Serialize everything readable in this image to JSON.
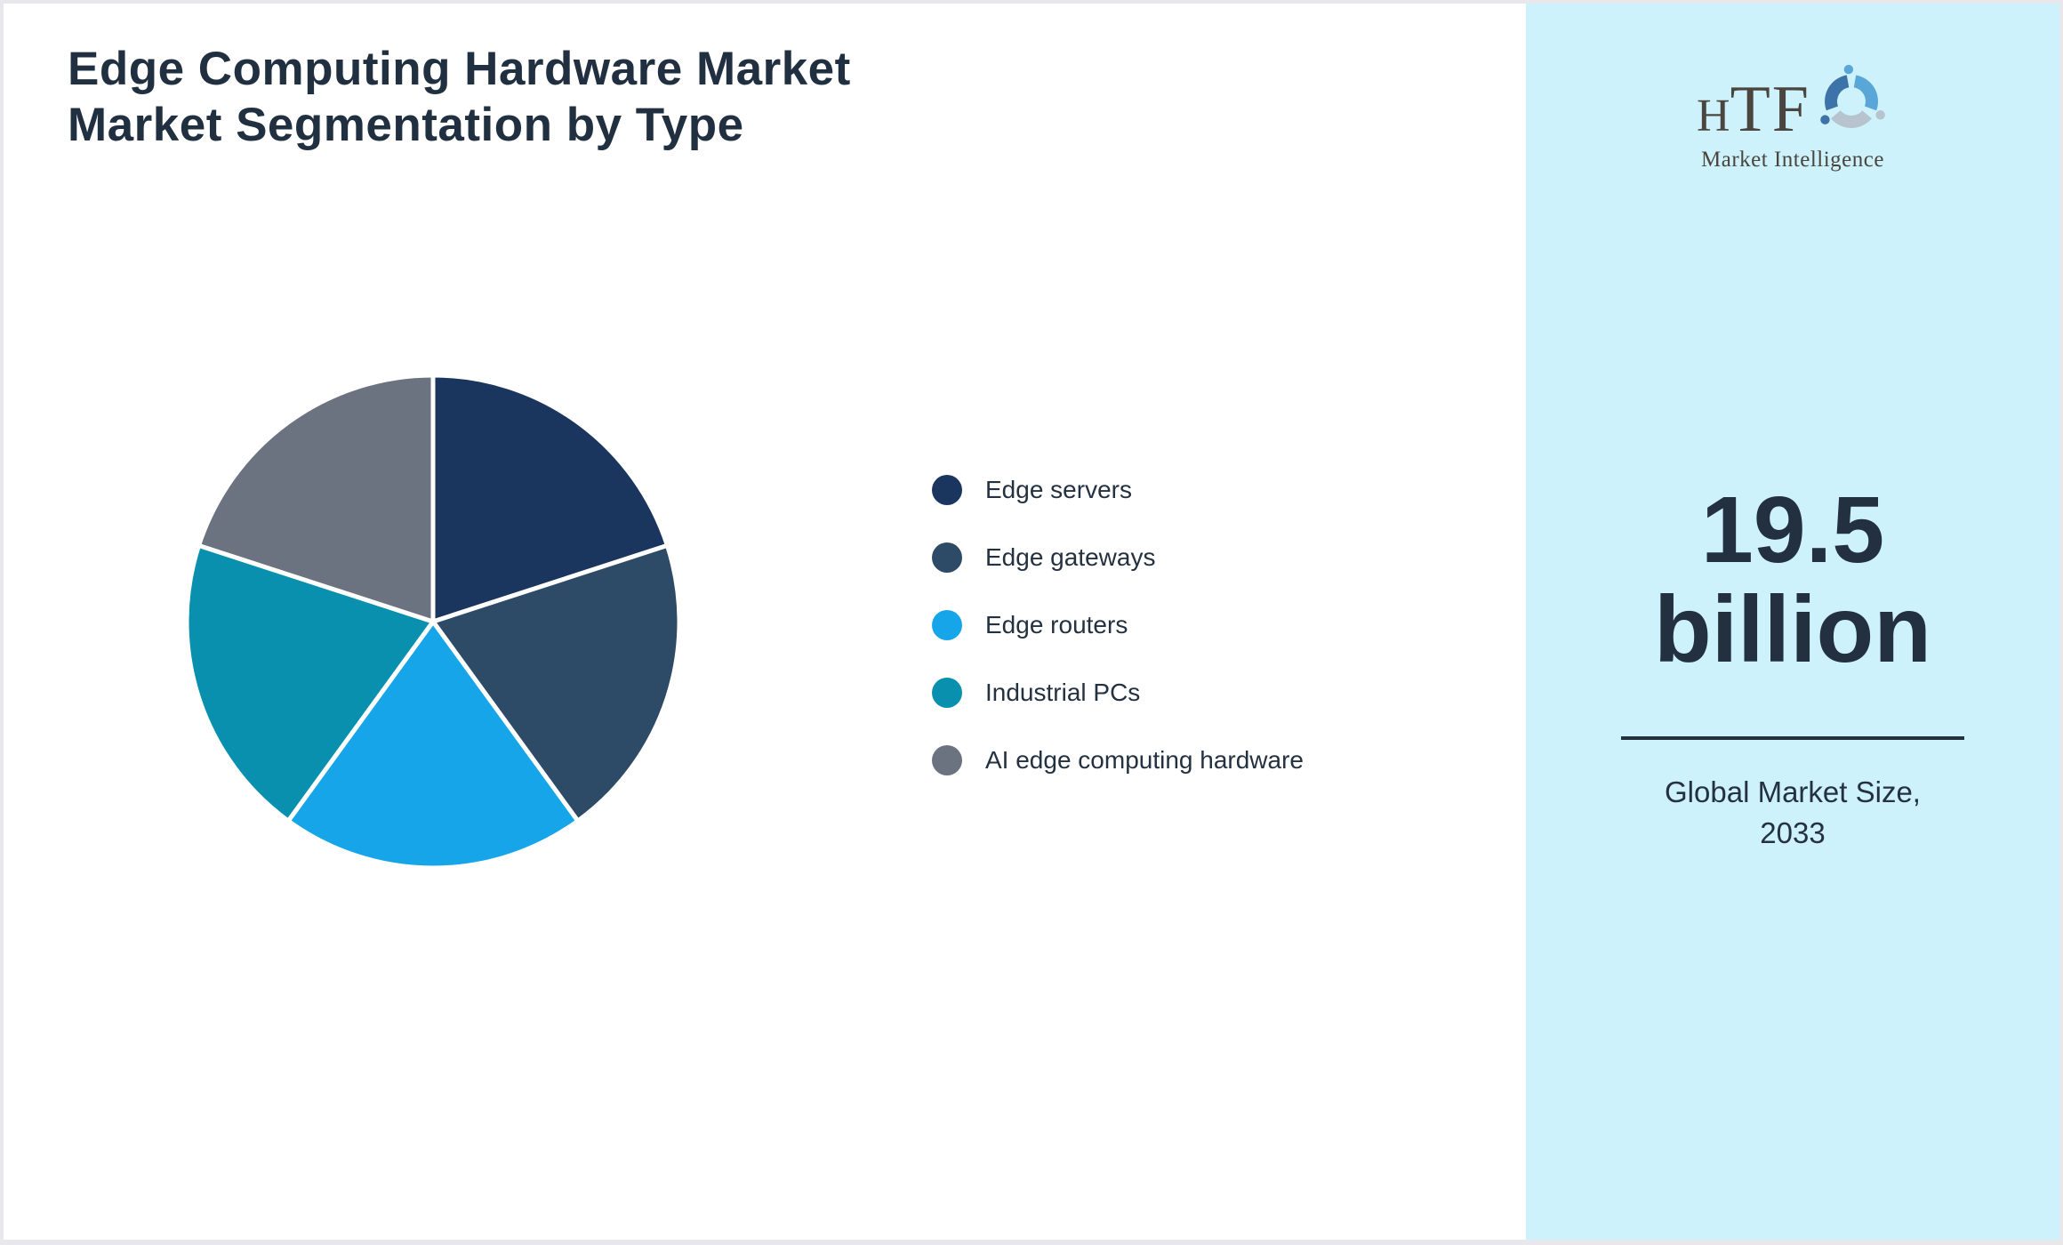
{
  "title": {
    "line1": "Edge Computing Hardware Market",
    "line2": "Market Segmentation by Type"
  },
  "chart_data": {
    "type": "pie",
    "title": "Edge Computing Hardware Market — Market Segmentation by Type",
    "labels": [
      "Edge servers",
      "Edge gateways",
      "Edge routers",
      "Industrial PCs",
      "AI edge computing hardware"
    ],
    "values": [
      20,
      20,
      20,
      20,
      20
    ],
    "colors": [
      "#1b365e",
      "#2d4a66",
      "#16a5e8",
      "#0a90af",
      "#6b7280"
    ],
    "legend_position": "right",
    "start_angle_deg": 0,
    "direction": "clockwise",
    "slice_gap_color": "#ffffff"
  },
  "side_panel": {
    "bg_color": "#cef2fb",
    "logo": {
      "text_h": "H",
      "text_tf": "TF",
      "subtext": "Market Intelligence",
      "icon": "dolphin-swirl-icon",
      "colors": {
        "text": "#4a463f",
        "swirl_light_blue": "#58a7d8",
        "swirl_steel_blue": "#3d73a9",
        "swirl_gray": "#b7c3ce"
      }
    },
    "market_size": {
      "value": "19.5",
      "unit": "billion"
    },
    "caption": {
      "line1": "Global Market Size,",
      "line2": "2033"
    }
  },
  "colors": {
    "page_border": "#e7e7ec",
    "content_bg": "#ffffff",
    "title_text": "#213040",
    "legend_text": "#243140",
    "stat_text": "#22303f",
    "divider": "#22303f"
  }
}
